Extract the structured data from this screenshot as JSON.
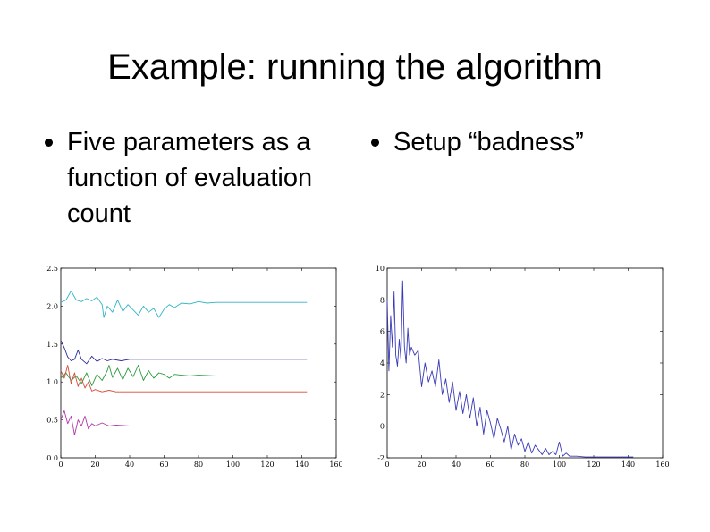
{
  "slide": {
    "title": "Example: running the algorithm",
    "bullets_left": [
      "Five parameters as a function of evaluation count"
    ],
    "bullets_right": [
      "Setup “badness”"
    ]
  },
  "chart_data": [
    {
      "type": "line",
      "xlim": [
        0,
        160
      ],
      "ylim": [
        0.0,
        2.5
      ],
      "xticks": [
        0,
        20,
        40,
        60,
        80,
        100,
        120,
        140,
        160
      ],
      "yticks": [
        0.0,
        0.5,
        1.0,
        1.5,
        2.0,
        2.5
      ],
      "xtick_labels": [
        "0",
        "20",
        "40",
        "60",
        "80",
        "100",
        "120",
        "140",
        "160"
      ],
      "ytick_labels": [
        "0.0",
        "0.5",
        "1.0",
        "1.5",
        "2.0",
        "2.5"
      ],
      "grid": false,
      "series": [
        {
          "color": "#33b5c8",
          "x": [
            0,
            3,
            6,
            9,
            12,
            15,
            18,
            21,
            24,
            25,
            27,
            30,
            33,
            36,
            39,
            42,
            45,
            48,
            51,
            54,
            57,
            60,
            63,
            66,
            70,
            75,
            80,
            85,
            90,
            95,
            100,
            110,
            120,
            130,
            143
          ],
          "values": [
            2.05,
            2.08,
            2.2,
            2.08,
            2.06,
            2.1,
            2.07,
            2.12,
            2.02,
            1.85,
            2.0,
            1.92,
            2.08,
            1.93,
            2.02,
            1.95,
            1.88,
            2.0,
            1.92,
            1.97,
            1.85,
            1.96,
            2.02,
            1.98,
            2.04,
            2.03,
            2.06,
            2.04,
            2.05,
            2.05,
            2.05,
            2.05,
            2.05,
            2.05,
            2.05
          ]
        },
        {
          "color": "#2d2d9a",
          "x": [
            0,
            2,
            4,
            6,
            8,
            10,
            12,
            15,
            18,
            21,
            24,
            27,
            30,
            35,
            40,
            50,
            60,
            80,
            100,
            120,
            143
          ],
          "values": [
            1.55,
            1.45,
            1.33,
            1.28,
            1.3,
            1.42,
            1.3,
            1.24,
            1.34,
            1.27,
            1.31,
            1.28,
            1.3,
            1.28,
            1.3,
            1.3,
            1.3,
            1.3,
            1.3,
            1.3,
            1.3
          ]
        },
        {
          "color": "#2a9a3c",
          "x": [
            0,
            3,
            6,
            9,
            12,
            15,
            18,
            21,
            24,
            27,
            28,
            30,
            33,
            36,
            39,
            42,
            45,
            48,
            51,
            54,
            57,
            60,
            63,
            66,
            70,
            75,
            80,
            90,
            100,
            110,
            120,
            143
          ],
          "values": [
            1.05,
            1.12,
            1.02,
            1.08,
            0.98,
            1.12,
            0.95,
            1.1,
            1.02,
            1.15,
            1.22,
            1.06,
            1.18,
            1.03,
            1.18,
            1.07,
            1.22,
            1.02,
            1.15,
            1.05,
            1.12,
            1.1,
            1.05,
            1.1,
            1.09,
            1.08,
            1.09,
            1.08,
            1.08,
            1.08,
            1.08,
            1.08
          ]
        },
        {
          "color": "#d84a3a",
          "x": [
            0,
            2,
            4,
            6,
            8,
            10,
            12,
            14,
            16,
            18,
            20,
            24,
            28,
            32,
            40,
            50,
            60,
            80,
            100,
            120,
            143
          ],
          "values": [
            1.15,
            1.05,
            1.22,
            0.98,
            1.12,
            0.94,
            1.05,
            0.92,
            1.0,
            0.88,
            0.9,
            0.87,
            0.89,
            0.87,
            0.87,
            0.87,
            0.87,
            0.87,
            0.87,
            0.87,
            0.87
          ]
        },
        {
          "color": "#b03aa8",
          "x": [
            0,
            2,
            4,
            6,
            8,
            10,
            12,
            14,
            16,
            18,
            20,
            24,
            28,
            32,
            40,
            50,
            60,
            80,
            100,
            120,
            143
          ],
          "values": [
            0.5,
            0.62,
            0.45,
            0.55,
            0.3,
            0.5,
            0.42,
            0.55,
            0.38,
            0.45,
            0.42,
            0.46,
            0.42,
            0.43,
            0.42,
            0.42,
            0.42,
            0.42,
            0.42,
            0.42,
            0.42
          ]
        }
      ]
    },
    {
      "type": "line",
      "xlim": [
        0,
        160
      ],
      "ylim": [
        -2,
        10
      ],
      "xticks": [
        0,
        20,
        40,
        60,
        80,
        100,
        120,
        140,
        160
      ],
      "yticks": [
        -2,
        0,
        2,
        4,
        6,
        8,
        10
      ],
      "xtick_labels": [
        "0",
        "20",
        "40",
        "60",
        "80",
        "100",
        "120",
        "140",
        "160"
      ],
      "ytick_labels": [
        "-2",
        "0",
        "2",
        "4",
        "6",
        "8",
        "10"
      ],
      "grid": false,
      "series": [
        {
          "color": "#3a3ab8",
          "x": [
            0,
            1,
            2,
            3,
            4,
            5,
            6,
            7,
            8,
            9,
            10,
            11,
            12,
            13,
            14,
            16,
            18,
            20,
            22,
            24,
            26,
            28,
            30,
            32,
            34,
            36,
            38,
            40,
            42,
            44,
            46,
            48,
            50,
            52,
            54,
            56,
            58,
            60,
            62,
            64,
            66,
            68,
            70,
            72,
            74,
            76,
            78,
            80,
            82,
            84,
            86,
            88,
            90,
            92,
            94,
            96,
            98,
            100,
            102,
            104,
            106,
            110,
            115,
            120,
            130,
            143
          ],
          "values": [
            8.0,
            3.5,
            7.0,
            5.0,
            8.5,
            4.5,
            3.8,
            5.5,
            4.2,
            9.2,
            5.0,
            4.0,
            6.2,
            4.5,
            5.0,
            4.5,
            4.8,
            2.5,
            4.0,
            2.8,
            3.5,
            2.5,
            4.2,
            2.0,
            3.0,
            1.5,
            2.8,
            1.0,
            2.2,
            0.8,
            2.0,
            0.5,
            1.8,
            0.0,
            1.2,
            -0.5,
            1.0,
            0.2,
            -0.8,
            0.5,
            -0.2,
            -1.0,
            0.0,
            -1.5,
            -0.5,
            -1.2,
            -0.8,
            -1.6,
            -1.0,
            -1.7,
            -1.2,
            -1.5,
            -1.8,
            -1.4,
            -1.8,
            -1.6,
            -1.8,
            -1.0,
            -1.9,
            -1.7,
            -1.9,
            -1.9,
            -1.95,
            -1.95,
            -1.95,
            -1.95
          ]
        }
      ]
    }
  ]
}
